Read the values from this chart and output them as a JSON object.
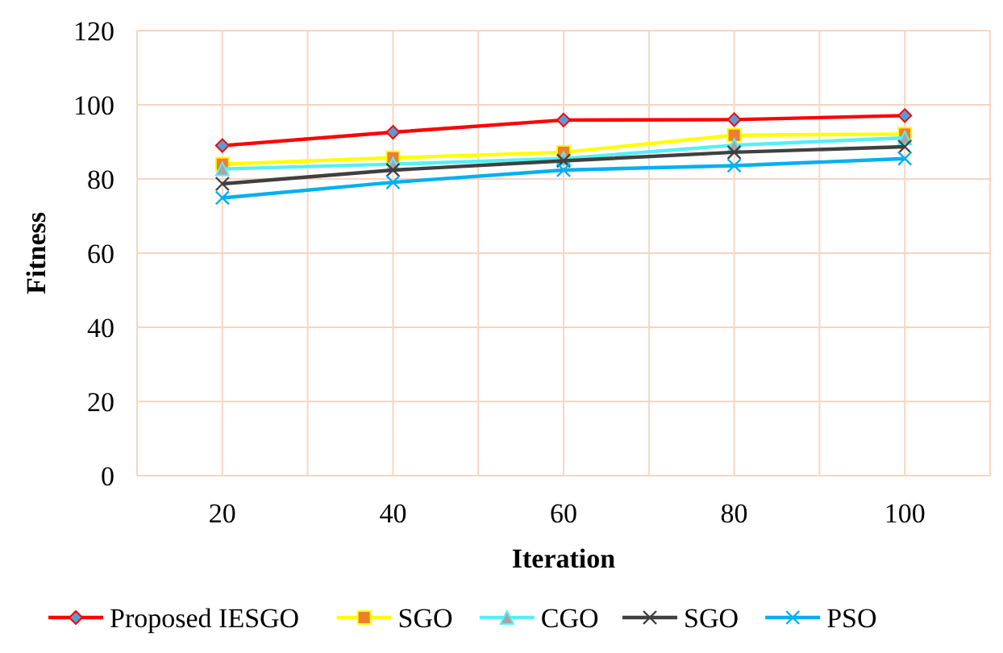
{
  "chart_data": {
    "type": "line",
    "xlabel": "Iteration",
    "ylabel": "Fitness",
    "categories": [
      "20",
      "40",
      "60",
      "80",
      "100"
    ],
    "ylim": [
      0,
      120
    ],
    "yticks": [
      0,
      20,
      40,
      60,
      80,
      100,
      120
    ],
    "grid": true,
    "legend": "bottom",
    "series": [
      {
        "name": "Proposed IESGO",
        "color": "#ff0000",
        "marker": "diamond",
        "values": [
          89,
          92.6,
          95.9,
          96,
          97.1
        ]
      },
      {
        "name": "SGO",
        "color": "#ffff00",
        "marker": "square",
        "values": [
          84,
          85.7,
          87.2,
          91.8,
          92.1
        ]
      },
      {
        "name": "CGO",
        "color": "#55f0f5",
        "marker": "triangle",
        "values": [
          82.7,
          84,
          85.5,
          89.1,
          91.1
        ]
      },
      {
        "name": "SGO",
        "color": "#404040",
        "marker": "cross",
        "values": [
          78.7,
          82.4,
          84.9,
          87.2,
          88.7
        ]
      },
      {
        "name": "PSO",
        "color": "#00b0f0",
        "marker": "cross",
        "values": [
          74.9,
          79.1,
          82.4,
          83.6,
          85.5
        ]
      }
    ]
  }
}
